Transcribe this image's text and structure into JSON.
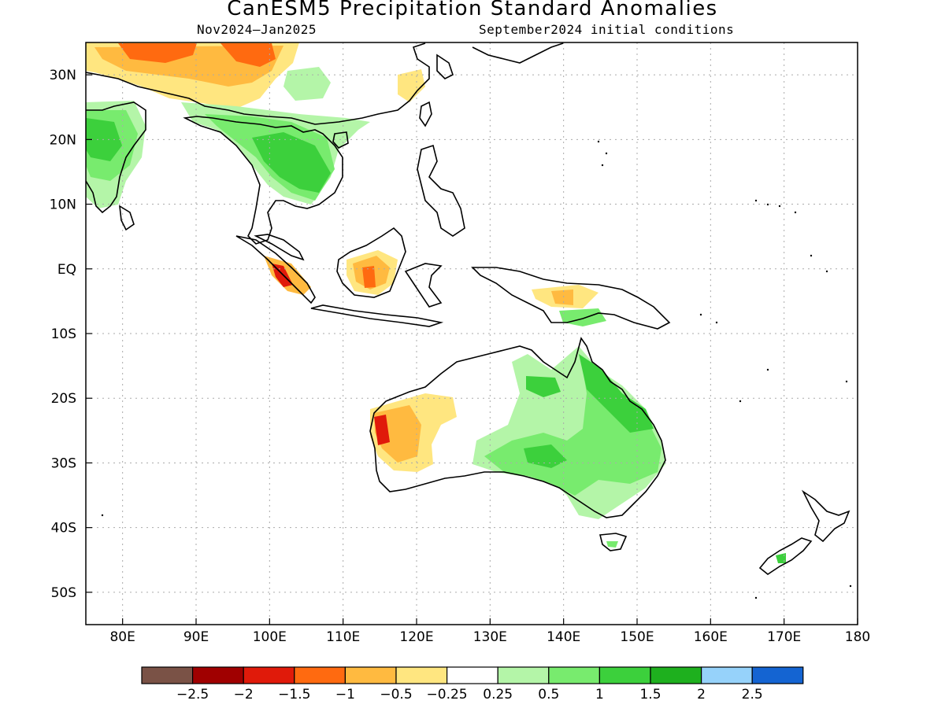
{
  "title": "CanESM5 Precipitation Standard Anomalies",
  "subtitle_left": "Nov2024–Jan2025",
  "subtitle_right": "September2024 initial conditions",
  "map": {
    "lon_range": [
      75,
      180
    ],
    "lat_range": [
      -55,
      35
    ],
    "lon_ticks": [
      {
        "value": 80,
        "label": "80E"
      },
      {
        "value": 90,
        "label": "90E"
      },
      {
        "value": 100,
        "label": "100E"
      },
      {
        "value": 110,
        "label": "110E"
      },
      {
        "value": 120,
        "label": "120E"
      },
      {
        "value": 130,
        "label": "130E"
      },
      {
        "value": 140,
        "label": "140E"
      },
      {
        "value": 150,
        "label": "150E"
      },
      {
        "value": 160,
        "label": "160E"
      },
      {
        "value": 170,
        "label": "170E"
      },
      {
        "value": 180,
        "label": "180"
      }
    ],
    "lat_ticks": [
      {
        "value": 30,
        "label": "30N"
      },
      {
        "value": 20,
        "label": "20N"
      },
      {
        "value": 10,
        "label": "10N"
      },
      {
        "value": 0,
        "label": "EQ"
      },
      {
        "value": -10,
        "label": "10S"
      },
      {
        "value": -20,
        "label": "20S"
      },
      {
        "value": -30,
        "label": "30S"
      },
      {
        "value": -40,
        "label": "40S"
      },
      {
        "value": -50,
        "label": "50S"
      }
    ],
    "grid": "dotted"
  },
  "colorbar": {
    "colors": [
      "#7a5246",
      "#a00000",
      "#e01a0a",
      "#ff6a10",
      "#ffba40",
      "#ffe680",
      "#ffffff",
      "#b4f5a8",
      "#78eb6e",
      "#3cd03c",
      "#1eb01e",
      "#96d2fa",
      "#1464d2"
    ],
    "labels": [
      "−2.5",
      "−2",
      "−1.5",
      "−1",
      "−0.5",
      "−0.25",
      "0.25",
      "0.5",
      "1",
      "1.5",
      "2",
      "2.5"
    ]
  },
  "anomaly_regions": [
    {
      "region": "Northern India / Himalaya",
      "level": "-1",
      "color": "#ff6a10"
    },
    {
      "region": "Central India",
      "level": "1.5",
      "color": "#3cd03c"
    },
    {
      "region": "Indochina",
      "level": "1.5",
      "color": "#3cd03c"
    },
    {
      "region": "Borneo",
      "level": "-1",
      "color": "#ff6a10"
    },
    {
      "region": "Sumatra",
      "level": "-1.5",
      "color": "#e01a0a"
    },
    {
      "region": "Western Australia",
      "level": "-1.5",
      "color": "#e01a0a"
    },
    {
      "region": "Queensland",
      "level": "1.5",
      "color": "#3cd03c"
    },
    {
      "region": "Central Australia",
      "level": "1.5",
      "color": "#3cd03c"
    },
    {
      "region": "New Guinea",
      "level": "-0.5",
      "color": "#ffba40"
    }
  ]
}
